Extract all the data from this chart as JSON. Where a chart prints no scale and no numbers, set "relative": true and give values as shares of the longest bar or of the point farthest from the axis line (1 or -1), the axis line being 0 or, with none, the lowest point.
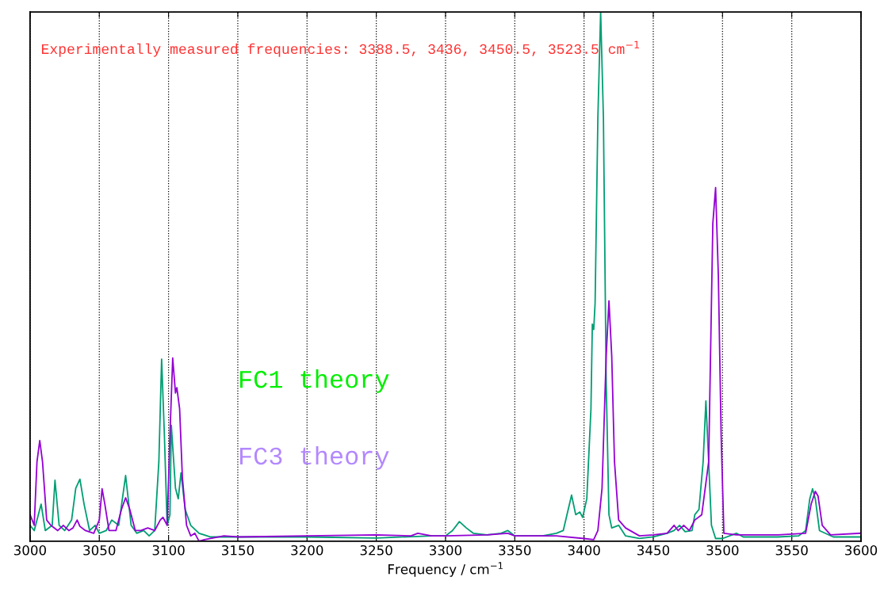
{
  "chart_data": {
    "type": "line",
    "relative": true,
    "xlabel": "Frequency / cm$^{−1}$",
    "xlim": [
      3000,
      3600
    ],
    "xticks": [
      3000,
      3050,
      3100,
      3150,
      3200,
      3250,
      3300,
      3350,
      3400,
      3450,
      3500,
      3550,
      3600
    ],
    "grid": "x",
    "line_style": "solid",
    "annotations": [
      "Experimentally measured frequencies: 3388.5, 3436, 3450.5, 3523.5 cm$^{−1}$",
      "FC1 theory",
      "FC3 theory"
    ],
    "series": [
      {
        "color": "#009e73",
        "x": [
          3000,
          3003,
          3008,
          3011,
          3016,
          3018,
          3021,
          3025,
          3030,
          3033,
          3036,
          3039,
          3043,
          3047,
          3050,
          3055,
          3059,
          3064,
          3069,
          3073,
          3077,
          3082,
          3086,
          3090,
          3093,
          3095,
          3097,
          3099,
          3101,
          3102,
          3105,
          3107,
          3109,
          3112,
          3116,
          3122,
          3130,
          3150,
          3200,
          3250,
          3290,
          3300,
          3305,
          3310,
          3315,
          3320,
          3330,
          3340,
          3345,
          3350,
          3370,
          3380,
          3385,
          3391,
          3394,
          3397,
          3399,
          3402,
          3405,
          3406,
          3407,
          3408,
          3410,
          3412,
          3414,
          3416,
          3418,
          3420,
          3425,
          3430,
          3440,
          3450,
          3460,
          3465,
          3469,
          3473,
          3478,
          3480,
          3483,
          3486,
          3488,
          3490,
          3492,
          3495,
          3500,
          3510,
          3515,
          3540,
          3555,
          3560,
          3563,
          3565,
          3567,
          3570,
          3580,
          3600
        ],
        "values": [
          0.03,
          0.02,
          0.07,
          0.02,
          0.03,
          0.115,
          0.03,
          0.02,
          0.04,
          0.1,
          0.117,
          0.07,
          0.02,
          0.03,
          0.015,
          0.02,
          0.04,
          0.03,
          0.124,
          0.03,
          0.015,
          0.02,
          0.01,
          0.02,
          0.15,
          0.344,
          0.2,
          0.03,
          0.05,
          0.219,
          0.1,
          0.08,
          0.129,
          0.06,
          0.03,
          0.015,
          0.008,
          0.008,
          0.008,
          0.006,
          0.01,
          0.01,
          0.02,
          0.037,
          0.025,
          0.015,
          0.012,
          0.015,
          0.02,
          0.01,
          0.01,
          0.015,
          0.02,
          0.087,
          0.05,
          0.055,
          0.045,
          0.08,
          0.25,
          0.41,
          0.4,
          0.45,
          0.8,
          1.0,
          0.8,
          0.3,
          0.05,
          0.025,
          0.03,
          0.01,
          0.005,
          0.008,
          0.015,
          0.02,
          0.03,
          0.018,
          0.02,
          0.05,
          0.06,
          0.15,
          0.265,
          0.15,
          0.03,
          0.005,
          0.005,
          0.015,
          0.008,
          0.008,
          0.01,
          0.02,
          0.08,
          0.099,
          0.08,
          0.02,
          0.008,
          0.008
        ]
      },
      {
        "color": "#9400d3",
        "x": [
          3000,
          3003,
          3005,
          3007,
          3009,
          3012,
          3015,
          3020,
          3024,
          3028,
          3031,
          3034,
          3036,
          3040,
          3046,
          3050,
          3052,
          3054,
          3057,
          3062,
          3066,
          3069,
          3072,
          3076,
          3080,
          3085,
          3090,
          3094,
          3096,
          3099,
          3101,
          3103,
          3105,
          3106,
          3108,
          3110,
          3113,
          3116,
          3119,
          3122,
          3126,
          3140,
          3150,
          3200,
          3250,
          3275,
          3280,
          3290,
          3300,
          3330,
          3345,
          3350,
          3380,
          3400,
          3407,
          3410,
          3413,
          3416,
          3418,
          3420,
          3422,
          3425,
          3430,
          3440,
          3450,
          3460,
          3465,
          3468,
          3472,
          3476,
          3480,
          3485,
          3490,
          3493,
          3495,
          3497,
          3499,
          3501,
          3510,
          3540,
          3560,
          3564,
          3567,
          3569,
          3572,
          3578,
          3600
        ],
        "values": [
          0.05,
          0.03,
          0.15,
          0.19,
          0.15,
          0.04,
          0.03,
          0.02,
          0.03,
          0.02,
          0.025,
          0.04,
          0.028,
          0.02,
          0.015,
          0.04,
          0.099,
          0.07,
          0.02,
          0.02,
          0.06,
          0.082,
          0.06,
          0.02,
          0.02,
          0.025,
          0.02,
          0.04,
          0.045,
          0.03,
          0.2,
          0.346,
          0.28,
          0.29,
          0.25,
          0.12,
          0.03,
          0.01,
          0.015,
          0.0,
          0.003,
          0.01,
          0.008,
          0.01,
          0.012,
          0.01,
          0.015,
          0.01,
          0.01,
          0.012,
          0.015,
          0.01,
          0.01,
          0.005,
          0.003,
          0.02,
          0.1,
          0.35,
          0.454,
          0.35,
          0.15,
          0.04,
          0.025,
          0.01,
          0.012,
          0.015,
          0.03,
          0.02,
          0.03,
          0.02,
          0.04,
          0.05,
          0.15,
          0.6,
          0.668,
          0.5,
          0.2,
          0.015,
          0.012,
          0.012,
          0.015,
          0.07,
          0.094,
          0.085,
          0.03,
          0.012,
          0.015
        ]
      }
    ]
  }
}
